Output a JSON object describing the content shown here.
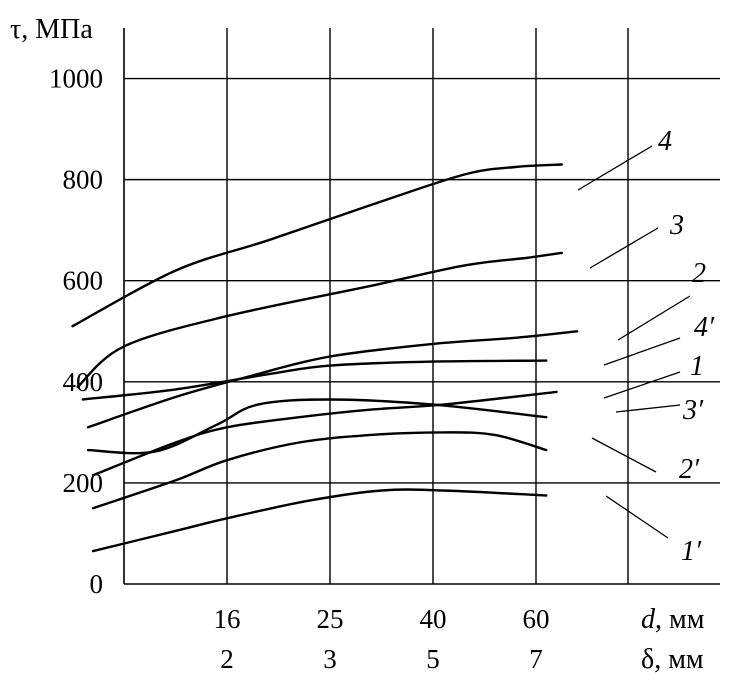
{
  "chart_data": {
    "type": "line",
    "ylabel": "τ, МПа",
    "xlabel_d": {
      "symbol": "d",
      "unit": ", мм"
    },
    "xlabel_delta": {
      "symbol": "δ",
      "unit": ", мм"
    },
    "ylim": [
      0,
      1100
    ],
    "y_ticks": [
      0,
      200,
      400,
      600,
      800,
      1000
    ],
    "x_ticks": [
      {
        "pos": 1,
        "d": "16",
        "delta": "2"
      },
      {
        "pos": 2,
        "d": "25",
        "delta": "3"
      },
      {
        "pos": 3,
        "d": "40",
        "delta": "5"
      },
      {
        "pos": 4,
        "d": "60",
        "delta": "7"
      }
    ],
    "grid": true,
    "series": [
      {
        "name": "4",
        "label": "4",
        "points": [
          [
            -0.5,
            510
          ],
          [
            0.5,
            620
          ],
          [
            1.4,
            680
          ],
          [
            2.4,
            750
          ],
          [
            3.3,
            810
          ],
          [
            3.8,
            825
          ],
          [
            4.25,
            830
          ]
        ]
      },
      {
        "name": "3",
        "label": "3",
        "points": [
          [
            -0.45,
            390
          ],
          [
            0.0,
            470
          ],
          [
            1.0,
            530
          ],
          [
            2.4,
            590
          ],
          [
            3.3,
            630
          ],
          [
            3.9,
            645
          ],
          [
            4.25,
            655
          ]
        ]
      },
      {
        "name": "2",
        "label": "2",
        "points": [
          [
            -0.35,
            310
          ],
          [
            0.5,
            370
          ],
          [
            1.2,
            410
          ],
          [
            2.0,
            450
          ],
          [
            3.0,
            475
          ],
          [
            3.8,
            487
          ],
          [
            4.4,
            500
          ]
        ]
      },
      {
        "name": "4'",
        "label": "4′",
        "points": [
          [
            -0.4,
            365
          ],
          [
            0.5,
            385
          ],
          [
            1.4,
            415
          ],
          [
            2.0,
            432
          ],
          [
            3.0,
            440
          ],
          [
            4.1,
            442
          ]
        ]
      },
      {
        "name": "1",
        "label": "1",
        "points": [
          [
            -0.35,
            265
          ],
          [
            0.3,
            262
          ],
          [
            0.9,
            315
          ],
          [
            1.3,
            355
          ],
          [
            2.0,
            365
          ],
          [
            3.0,
            355
          ],
          [
            4.1,
            330
          ]
        ]
      },
      {
        "name": "3'",
        "label": "3′",
        "points": [
          [
            -0.3,
            215
          ],
          [
            0.5,
            280
          ],
          [
            1.0,
            310
          ],
          [
            1.7,
            330
          ],
          [
            2.4,
            345
          ],
          [
            3.1,
            355
          ],
          [
            4.2,
            380
          ]
        ]
      },
      {
        "name": "2'",
        "label": "2′",
        "points": [
          [
            -0.3,
            150
          ],
          [
            0.5,
            205
          ],
          [
            1.0,
            245
          ],
          [
            1.7,
            280
          ],
          [
            2.4,
            295
          ],
          [
            3.1,
            300
          ],
          [
            3.6,
            295
          ],
          [
            4.1,
            265
          ]
        ]
      },
      {
        "name": "1'",
        "label": "1′",
        "points": [
          [
            -0.3,
            65
          ],
          [
            0.5,
            105
          ],
          [
            1.0,
            130
          ],
          [
            1.8,
            165
          ],
          [
            2.5,
            185
          ],
          [
            3.1,
            185
          ],
          [
            4.1,
            175
          ]
        ]
      }
    ]
  }
}
